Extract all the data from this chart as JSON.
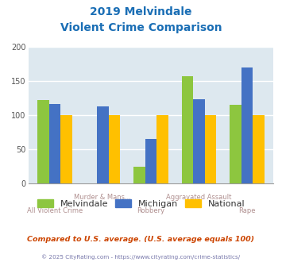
{
  "title_line1": "2019 Melvindale",
  "title_line2": "Violent Crime Comparison",
  "categories_top": [
    "",
    "Murder & Mans...",
    "",
    "Aggravated Assault",
    ""
  ],
  "categories_bot": [
    "All Violent Crime",
    "",
    "Robbery",
    "",
    "Rape"
  ],
  "melvindale": [
    122,
    0,
    25,
    157,
    115
  ],
  "michigan": [
    116,
    113,
    65,
    123,
    170
  ],
  "national": [
    100,
    100,
    100,
    100,
    100
  ],
  "color_melvindale": "#8dc63f",
  "color_michigan": "#4472c4",
  "color_national": "#ffc000",
  "ylim": [
    0,
    200
  ],
  "yticks": [
    0,
    50,
    100,
    150,
    200
  ],
  "bg_color": "#dde8ef",
  "title_color": "#1a6eb5",
  "xlabel_top_color": "#b09090",
  "xlabel_bot_color": "#b09090",
  "legend_label_color": "#333333",
  "footnote_color": "#cc4400",
  "copyright_color": "#7777aa",
  "footnote": "Compared to U.S. average. (U.S. average equals 100)",
  "copyright": "© 2025 CityRating.com - https://www.cityrating.com/crime-statistics/"
}
